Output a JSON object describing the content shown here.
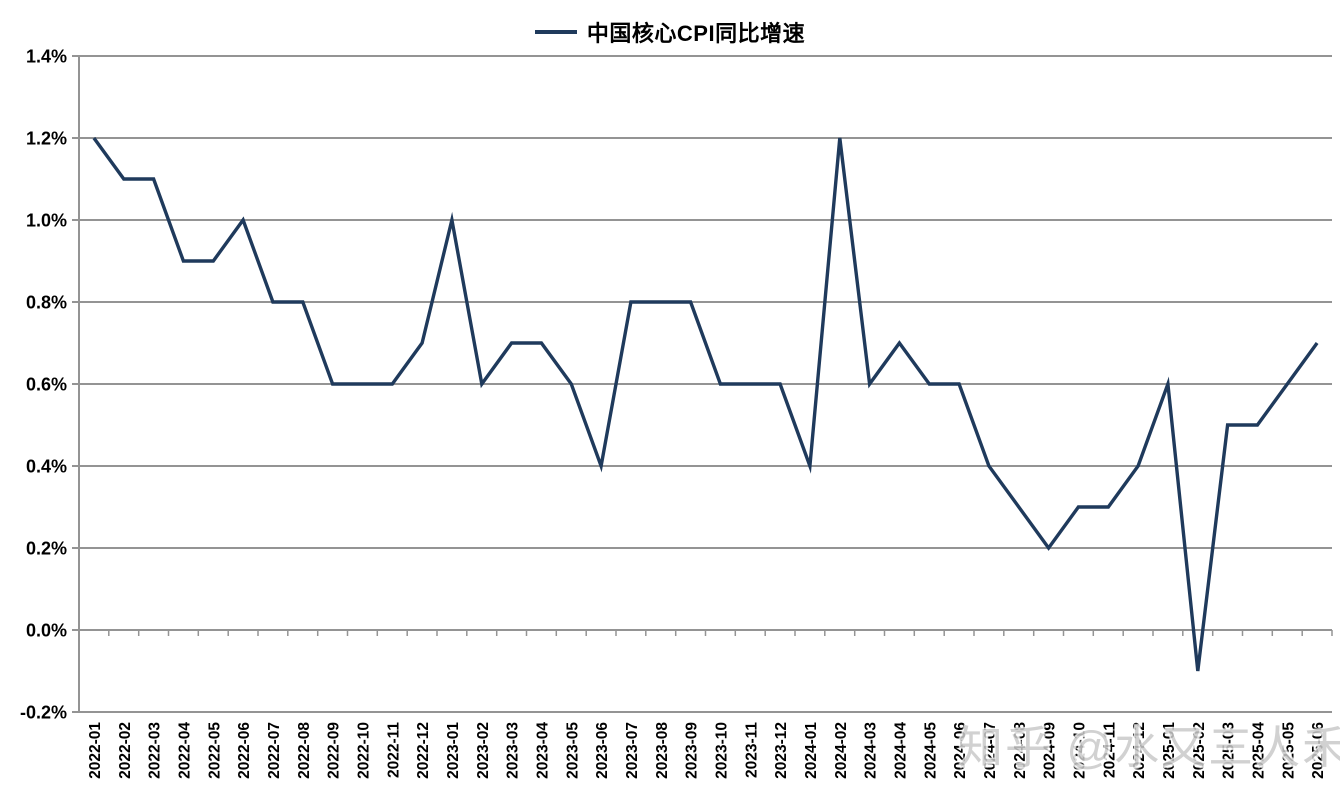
{
  "watermark": {
    "text": "知乎 @水又三人禾"
  },
  "chart_data": {
    "type": "line",
    "title": "",
    "legend_position": "top-center",
    "grid": true,
    "grid_color": "#949494",
    "axis_color": "#949494",
    "background": "#ffffff",
    "xlabel": "",
    "ylabel": "",
    "ylim": [
      -0.2,
      1.4
    ],
    "ytick_step": 0.2,
    "ytick_labels": [
      "1.4%",
      "1.2%",
      "1.0%",
      "0.8%",
      "0.6%",
      "0.4%",
      "0.2%",
      "0.0%",
      "-0.2%"
    ],
    "x": [
      "2022-01",
      "2022-02",
      "2022-03",
      "2022-04",
      "2022-05",
      "2022-06",
      "2022-07",
      "2022-08",
      "2022-09",
      "2022-10",
      "2022-11",
      "2022-12",
      "2023-01",
      "2023-02",
      "2023-03",
      "2023-04",
      "2023-05",
      "2023-06",
      "2023-07",
      "2023-08",
      "2023-09",
      "2023-10",
      "2023-11",
      "2023-12",
      "2024-01",
      "2024-02",
      "2024-03",
      "2024-04",
      "2024-05",
      "2024-06",
      "2024-07",
      "2024-08",
      "2024-09",
      "2024-10",
      "2024-11",
      "2024-12",
      "2025-01",
      "2025-02",
      "2025-03",
      "2025-04",
      "2025-05",
      "2025-06"
    ],
    "series": [
      {
        "name": "中国核心CPI同比增速",
        "color": "#1f3a5c",
        "values": [
          1.2,
          1.1,
          1.1,
          0.9,
          0.9,
          1.0,
          0.8,
          0.8,
          0.6,
          0.6,
          0.6,
          0.7,
          1.0,
          0.6,
          0.7,
          0.7,
          0.6,
          0.4,
          0.8,
          0.8,
          0.8,
          0.6,
          0.6,
          0.6,
          0.4,
          1.2,
          0.6,
          0.7,
          0.6,
          0.6,
          0.4,
          0.3,
          0.2,
          0.3,
          0.3,
          0.4,
          0.6,
          -0.1,
          0.5,
          0.5,
          0.6,
          0.7
        ]
      }
    ]
  }
}
